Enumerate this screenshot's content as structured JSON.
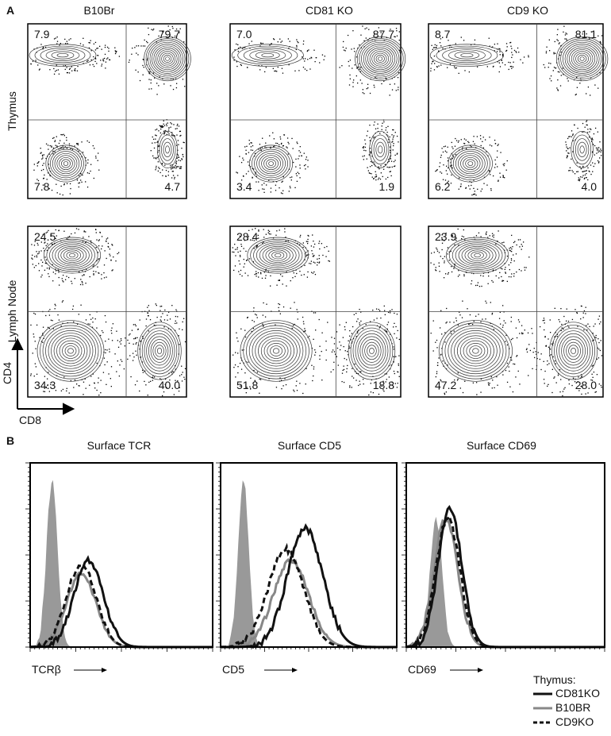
{
  "panel_a": {
    "label": "A",
    "columns": [
      "B10Br",
      "CD81 KO",
      "CD9 KO"
    ],
    "rows": [
      "Thymus",
      "Lymph Node"
    ],
    "quadrants": [
      [
        [
          "7.9",
          "79.7",
          "7.8",
          "4.7"
        ],
        [
          "7.0",
          "87.7",
          "3.4",
          "1.9"
        ],
        [
          "8.7",
          "81.1",
          "6.2",
          "4.0"
        ]
      ],
      [
        [
          "24.5",
          "",
          "34.3",
          "40.0"
        ],
        [
          "28.4",
          "",
          "51.8",
          "18.8"
        ],
        [
          "23.9",
          "",
          "47.2",
          "28.0"
        ]
      ]
    ],
    "axis_y": "CD4",
    "axis_x": "CD8"
  },
  "panel_b": {
    "label": "B",
    "titles": [
      "Surface TCR",
      "Surface CD5",
      "Surface CD69"
    ],
    "x_labels": [
      "TCRβ",
      "CD5",
      "CD69"
    ],
    "legend": {
      "title": "Thymus:",
      "items": [
        "CD81KO",
        "B10BR",
        "CD9KO"
      ]
    }
  }
}
